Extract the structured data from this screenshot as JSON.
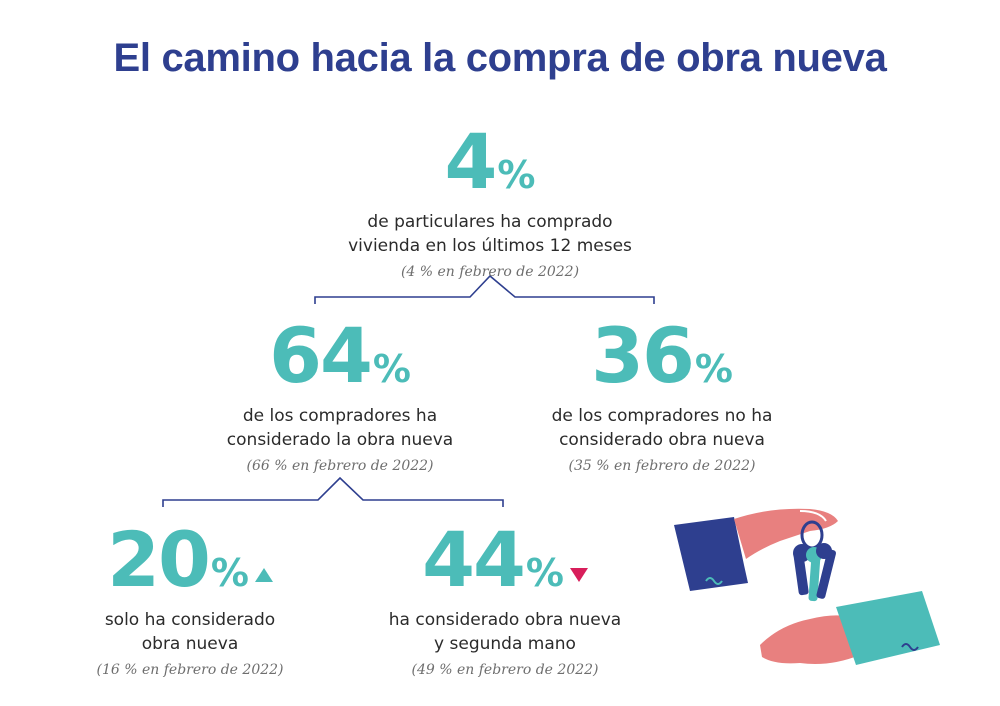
{
  "title": "El camino hacia la compra de obra nueva",
  "colors": {
    "title": "#2e3f8f",
    "accent": "#4cbcb8",
    "down": "#d81e5b",
    "line": "#2e3f8f"
  },
  "stats": {
    "top": {
      "value": "4",
      "unit": "%",
      "desc1": "de particulares ha comprado",
      "desc2": "vivienda en los últimos 12 meses",
      "note": "(4 % en febrero de 2022)"
    },
    "considered": {
      "value": "64",
      "unit": "%",
      "desc1": "de los compradores ha",
      "desc2": "considerado la obra nueva",
      "note": "(66 % en febrero de 2022)"
    },
    "not_considered": {
      "value": "36",
      "unit": "%",
      "desc1": "de los compradores no ha",
      "desc2": "considerado obra nueva",
      "note": "(35 % en febrero de 2022)"
    },
    "only_new": {
      "value": "20",
      "unit": "%",
      "trend": "up",
      "desc1": "solo ha considerado",
      "desc2": "obra nueva",
      "note": "(16 % en febrero de 2022)"
    },
    "new_and_used": {
      "value": "44",
      "unit": "%",
      "trend": "down",
      "desc1": "ha considerado obra nueva",
      "desc2": "y segunda mano",
      "note": "(49 % en febrero de 2022)"
    }
  },
  "illustration": "hands-passing-keys"
}
